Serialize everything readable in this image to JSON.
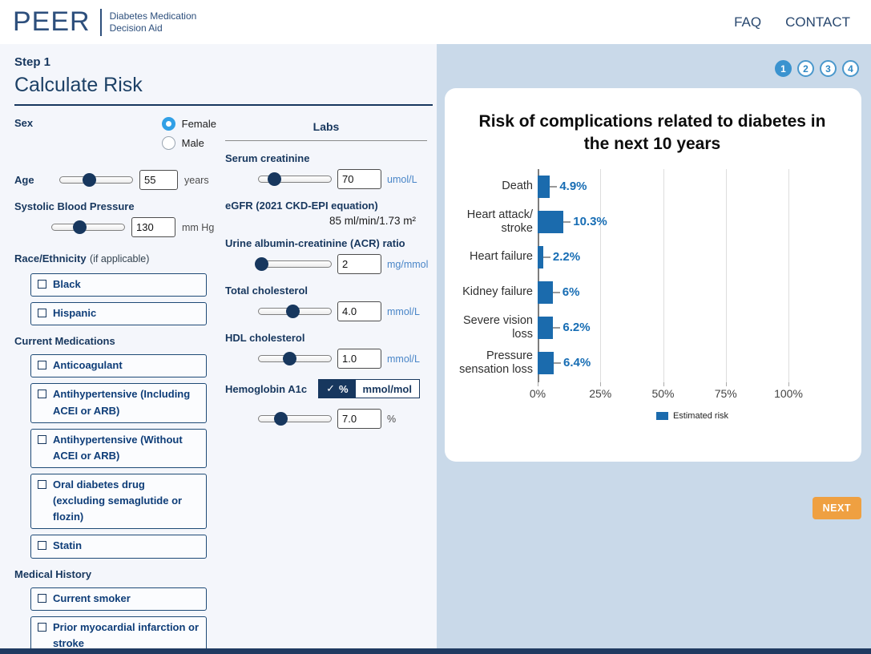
{
  "header": {
    "logo": "PEER",
    "subtitle_line1": "Diabetes Medication",
    "subtitle_line2": "Decision Aid",
    "nav_faq": "FAQ",
    "nav_contact": "CONTACT"
  },
  "form": {
    "step_label": "Step 1",
    "title": "Calculate Risk",
    "sex": {
      "label": "Sex",
      "options": [
        {
          "label": "Female",
          "selected": true
        },
        {
          "label": "Male",
          "selected": false
        }
      ]
    },
    "age": {
      "label": "Age",
      "value": "55",
      "unit": "years",
      "slider_pos": 40
    },
    "sbp": {
      "label": "Systolic Blood Pressure",
      "value": "130",
      "unit": "mm Hg",
      "slider_pos": 38
    },
    "race": {
      "label": "Race/Ethnicity",
      "note": "(if applicable)",
      "options": [
        "Black",
        "Hispanic"
      ]
    },
    "medications": {
      "label": "Current Medications",
      "options": [
        "Anticoagulant",
        "Antihypertensive (Including ACEI or ARB)",
        "Antihypertensive (Without ACEI or ARB)",
        "Oral diabetes drug (excluding semaglutide or flozin)",
        "Statin"
      ]
    },
    "history": {
      "label": "Medical History",
      "options": [
        "Current smoker",
        "Prior myocardial infarction or stroke"
      ]
    },
    "labs": {
      "title": "Labs",
      "serum_creatinine": {
        "label": "Serum creatinine",
        "value": "70",
        "unit": "umol/L",
        "slider_pos": 22
      },
      "egfr": {
        "label": "eGFR (2021 CKD-EPI equation)",
        "value": "85 ml/min/1.73 m²"
      },
      "acr": {
        "label": "Urine albumin-creatinine (ACR) ratio",
        "value": "2",
        "unit": "mg/mmol",
        "slider_pos": 4
      },
      "total_cholesterol": {
        "label": "Total cholesterol",
        "value": "4.0",
        "unit": "mmol/L",
        "slider_pos": 47
      },
      "hdl_cholesterol": {
        "label": "HDL cholesterol",
        "value": "1.0",
        "unit": "mmol/L",
        "slider_pos": 42
      },
      "a1c": {
        "label": "Hemoglobin A1c",
        "toggle": {
          "check": "✓",
          "percent": "%",
          "mmolmol": "mmol/mol",
          "selected": "percent"
        },
        "value": "7.0",
        "unit": "%",
        "slider_pos": 30
      }
    }
  },
  "results": {
    "steps": [
      "1",
      "2",
      "3",
      "4"
    ],
    "active_step": "1",
    "next_button": "NEXT"
  },
  "chart_data": {
    "type": "bar",
    "orientation": "horizontal",
    "title": "Risk of complications related to diabetes in the next 10 years",
    "categories": [
      "Death",
      "Heart attack/ stroke",
      "Heart failure",
      "Kidney failure",
      "Severe vision loss",
      "Pressure sensation loss"
    ],
    "values": [
      4.9,
      10.3,
      2.2,
      6,
      6.2,
      6.4
    ],
    "value_labels": [
      "4.9%",
      "10.3%",
      "2.2%",
      "6%",
      "6.2%",
      "6.4%"
    ],
    "x_ticks": [
      "0%",
      "25%",
      "50%",
      "75%",
      "100%"
    ],
    "xlim": [
      0,
      100
    ],
    "grid": true,
    "legend": "Estimated risk",
    "legend_position": "bottom",
    "bar_color": "#1b6bad"
  },
  "colors": {
    "navy": "#17375e",
    "accent_blue": "#31a0e6",
    "bar_blue": "#1b6bad",
    "step_blue": "#3b93cf",
    "orange": "#efa041",
    "left_bg": "#f4f6fb",
    "right_bg": "#c9d9e9",
    "bottom_bar": "#1f3a61"
  }
}
